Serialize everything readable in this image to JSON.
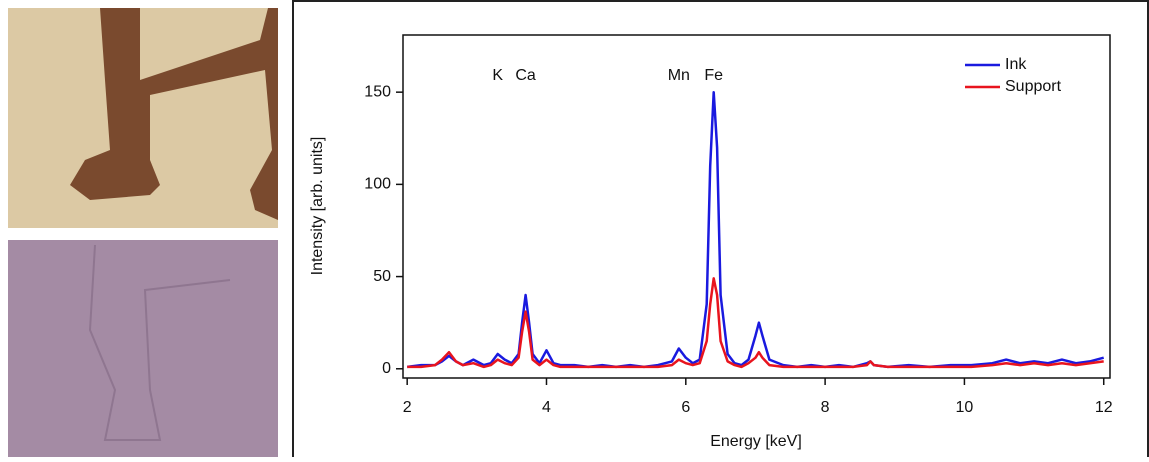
{
  "chart_data": {
    "type": "line",
    "xlabel": "Energy [keV]",
    "ylabel": "Intensity [arb. units]",
    "annotations": [
      {
        "text": "K",
        "x": 3.3
      },
      {
        "text": "Ca",
        "x": 3.7
      },
      {
        "text": "Mn",
        "x": 5.9
      },
      {
        "text": "Fe",
        "x": 6.4
      }
    ],
    "x": [
      2.0,
      2.2,
      2.4,
      2.5,
      2.6,
      2.7,
      2.8,
      2.95,
      3.1,
      3.2,
      3.3,
      3.4,
      3.5,
      3.6,
      3.65,
      3.7,
      3.75,
      3.8,
      3.9,
      4.0,
      4.1,
      4.2,
      4.4,
      4.6,
      4.8,
      5.0,
      5.2,
      5.4,
      5.6,
      5.8,
      5.9,
      6.0,
      6.1,
      6.2,
      6.3,
      6.35,
      6.4,
      6.45,
      6.5,
      6.6,
      6.7,
      6.8,
      6.9,
      7.0,
      7.05,
      7.1,
      7.2,
      7.4,
      7.6,
      7.8,
      8.0,
      8.2,
      8.4,
      8.6,
      8.65,
      8.7,
      8.9,
      9.2,
      9.5,
      9.8,
      10.1,
      10.4,
      10.6,
      10.8,
      11.0,
      11.2,
      11.4,
      11.6,
      11.8,
      12.0
    ],
    "series": [
      {
        "name": "Ink",
        "color": "#1a1adf",
        "values": [
          1,
          2,
          2,
          4,
          7,
          4,
          2,
          5,
          2,
          3,
          8,
          5,
          3,
          8,
          25,
          40,
          25,
          8,
          3,
          10,
          3,
          2,
          2,
          1,
          2,
          1,
          2,
          1,
          2,
          4,
          11,
          6,
          3,
          5,
          35,
          110,
          150,
          120,
          40,
          8,
          3,
          2,
          5,
          18,
          25,
          18,
          5,
          2,
          1,
          2,
          1,
          2,
          1,
          3,
          4,
          2,
          1,
          2,
          1,
          2,
          2,
          3,
          5,
          3,
          4,
          3,
          5,
          3,
          4,
          6
        ]
      },
      {
        "name": "Support",
        "color": "#e8141e",
        "values": [
          1,
          1,
          2,
          5,
          9,
          4,
          2,
          3,
          1,
          2,
          5,
          3,
          2,
          6,
          20,
          31,
          20,
          5,
          2,
          5,
          2,
          1,
          1,
          1,
          1,
          1,
          1,
          1,
          1,
          2,
          5,
          3,
          2,
          3,
          15,
          35,
          49,
          40,
          15,
          4,
          2,
          1,
          3,
          6,
          9,
          6,
          2,
          1,
          1,
          1,
          1,
          1,
          1,
          2,
          4,
          2,
          1,
          1,
          1,
          1,
          1,
          2,
          3,
          2,
          3,
          2,
          3,
          2,
          3,
          4
        ]
      }
    ],
    "xlim": [
      1.94,
      12.09
    ],
    "ylim": [
      -5,
      181
    ],
    "xticks": [
      2,
      4,
      6,
      8,
      10,
      12
    ],
    "yticks": [
      0,
      50,
      100,
      150
    ],
    "legend": "upper right"
  }
}
